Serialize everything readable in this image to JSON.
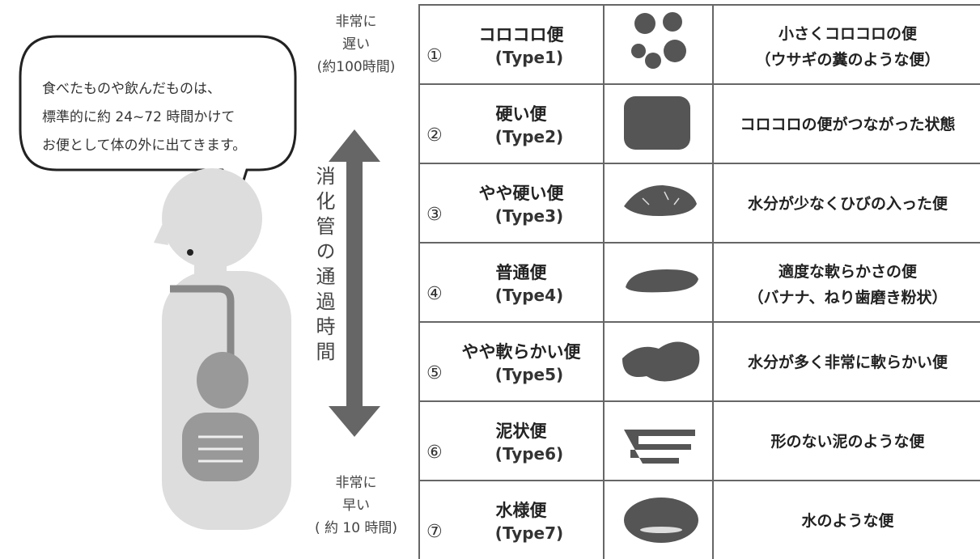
{
  "speech_bubble": {
    "lines": [
      "食べたものや飲んだものは、",
      "標準的に約 24~72 時間かけて",
      "お便として体の外に出てきます。"
    ]
  },
  "slow": {
    "lines": [
      "非常に",
      "遅い",
      "(約100時間)"
    ]
  },
  "transit_time": "消化管の通過時間",
  "fast": {
    "lines": [
      "非常に",
      "早い",
      "( 約 10 時間)"
    ]
  },
  "table": {
    "rows": [
      {
        "number": "①",
        "name": "コロコロ便",
        "type": "(Type1)",
        "description": [
          "小さくコロコロの便",
          "（ウサギの糞のような便）"
        ]
      },
      {
        "number": "②",
        "name": "硬い便",
        "type": "(Type2)",
        "description": [
          "コロコロの便がつながった状態"
        ]
      },
      {
        "number": "③",
        "name": "やや硬い便",
        "type": "(Type3)",
        "description": [
          "水分が少なくひびの入った便"
        ]
      },
      {
        "number": "④",
        "name": "普通便",
        "type": "(Type4)",
        "description": [
          "適度な軟らかさの便",
          "（バナナ、ねり歯磨き粉状）"
        ]
      },
      {
        "number": "⑤",
        "name": "やや軟らかい便",
        "type": "(Type5)",
        "description": [
          "水分が多く非常に軟らかい便"
        ]
      },
      {
        "number": "⑥",
        "name": "泥状便",
        "type": "(Type6)",
        "description": [
          "形のない泥のような便"
        ]
      },
      {
        "number": "⑦",
        "name": "水様便",
        "type": "(Type7)",
        "description": [
          "水のような便"
        ]
      }
    ]
  }
}
